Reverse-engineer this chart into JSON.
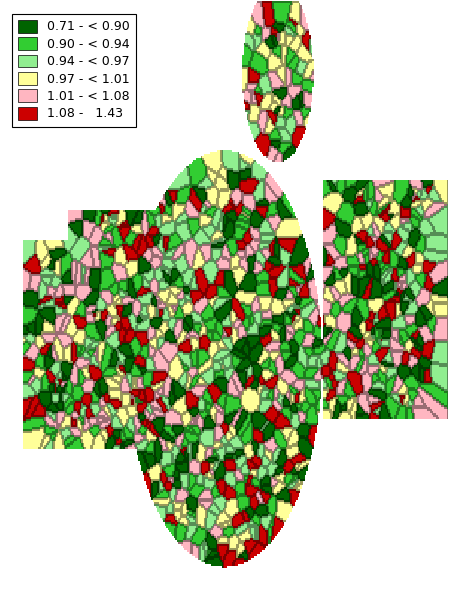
{
  "legend_labels": [
    "0.71 - < 0.90",
    "0.90 - < 0.94",
    "0.94 - < 0.97",
    "0.97 - < 1.01",
    "1.01 - < 1.08",
    "1.08 -   1.43"
  ],
  "legend_colors": [
    "#006400",
    "#32CD32",
    "#90EE90",
    "#FFFF99",
    "#FFB6C1",
    "#CC0000"
  ],
  "background_color": "#FFFFFF",
  "figsize": [
    4.49,
    5.99
  ],
  "dpi": 100,
  "legend_fontsize": 9
}
